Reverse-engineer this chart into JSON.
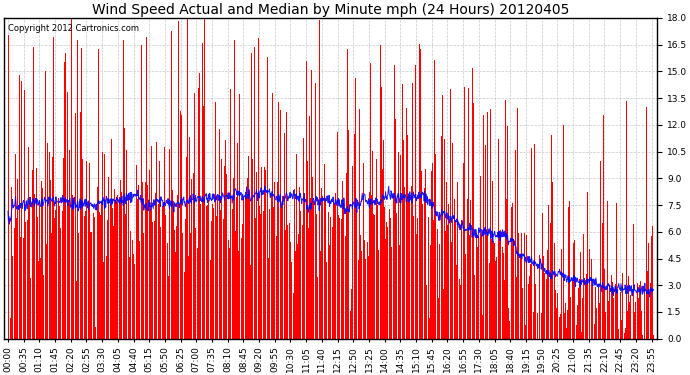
{
  "title": "Wind Speed Actual and Median by Minute mph (24 Hours) 20120405",
  "copyright_text": "Copyright 2012 Cartronics.com",
  "bar_color": "#FF0000",
  "line_color": "#0000FF",
  "background_color": "#FFFFFF",
  "plot_bg_color": "#FFFFFF",
  "grid_color": "#BBBBBB",
  "ylim": [
    0.0,
    18.0
  ],
  "yticks": [
    0.0,
    1.5,
    3.0,
    4.5,
    6.0,
    7.5,
    9.0,
    10.5,
    12.0,
    13.5,
    15.0,
    16.5,
    18.0
  ],
  "xtick_interval_minutes": 35,
  "title_fontsize": 10,
  "tick_fontsize": 6.5,
  "copyright_fontsize": 6,
  "n_minutes": 1440,
  "figwidth": 6.9,
  "figheight": 3.75,
  "dpi": 100
}
